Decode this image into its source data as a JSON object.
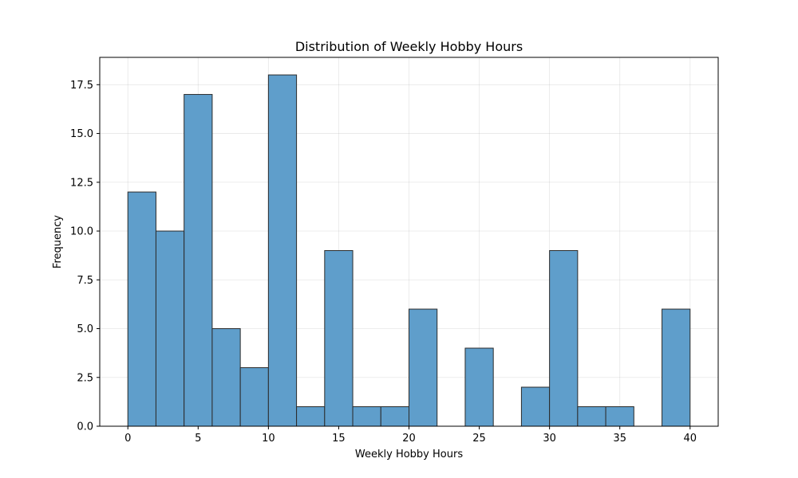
{
  "chart_data": {
    "type": "histogram",
    "title": "Distribution of Weekly Hobby Hours",
    "xlabel": "Weekly Hobby Hours",
    "ylabel": "Frequency",
    "bin_edges": [
      0,
      2,
      4,
      6,
      8,
      10,
      12,
      14,
      16,
      18,
      20,
      22,
      24,
      26,
      28,
      30,
      32,
      34,
      36,
      38,
      40
    ],
    "counts": [
      12,
      10,
      17,
      5,
      3,
      18,
      1,
      9,
      1,
      1,
      6,
      0,
      4,
      0,
      2,
      9,
      1,
      1,
      0,
      6
    ],
    "xlim": [
      -2,
      42
    ],
    "ylim": [
      0,
      18.9
    ],
    "xticks": [
      0,
      5,
      10,
      15,
      20,
      25,
      30,
      35,
      40
    ],
    "xtick_labels": [
      "0",
      "5",
      "10",
      "15",
      "20",
      "25",
      "30",
      "35",
      "40"
    ],
    "yticks": [
      0,
      2.5,
      5,
      7.5,
      10,
      12.5,
      15,
      17.5
    ],
    "ytick_labels": [
      "0.0",
      "2.5",
      "5.0",
      "7.5",
      "10.0",
      "12.5",
      "15.0",
      "17.5"
    ],
    "grid": true,
    "bar_color": "#5f9ecb",
    "edge_color": "#2b2b2b"
  }
}
